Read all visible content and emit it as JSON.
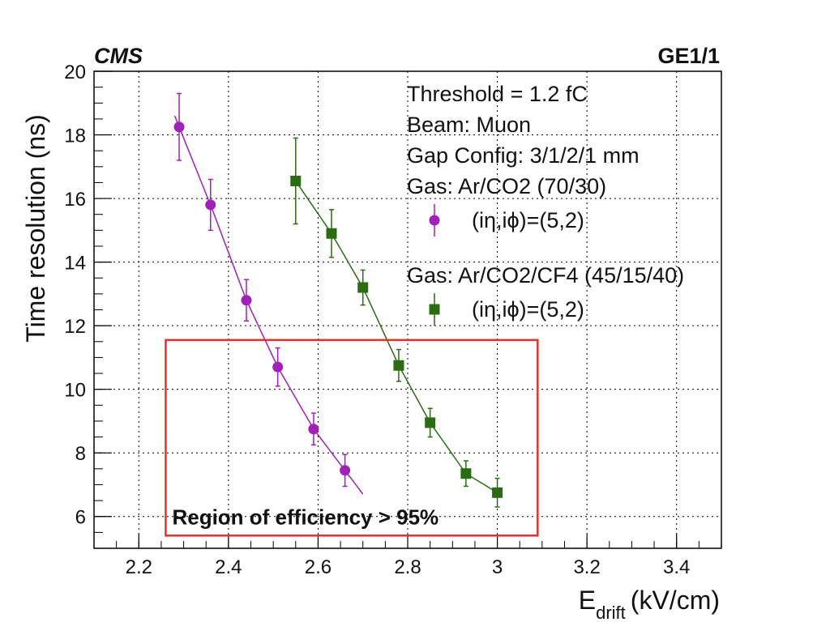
{
  "chart_data": {
    "type": "scatter",
    "experiment_label": "CMS",
    "detector_label": "GE1/1",
    "xlabel_main": "E",
    "xlabel_sub": "drift",
    "xlabel_unit": "(kV/cm)",
    "ylabel": "Time resolution (ns)",
    "xlim": [
      2.1,
      3.5
    ],
    "ylim": [
      5,
      20
    ],
    "x_ticks": [
      "2.2",
      "2.4",
      "2.6",
      "2.8",
      "3",
      "3.2",
      "3.4"
    ],
    "y_ticks": [
      "6",
      "8",
      "10",
      "12",
      "14",
      "16",
      "18",
      "20"
    ],
    "grid": true,
    "info_lines": [
      "Threshold = 1.2 fC",
      "Beam: Muon",
      "Gap Config: 3/1/2/1 mm",
      "Gas: Ar/CO2 (70/30)"
    ],
    "series": [
      {
        "gas_label": "",
        "legend": "(iη,iϕ)=(5,2)",
        "marker": "circle",
        "color": "#a020b8",
        "points": [
          {
            "x": 2.29,
            "y": 18.25,
            "err": 1.05
          },
          {
            "x": 2.36,
            "y": 15.8,
            "err": 0.8
          },
          {
            "x": 2.44,
            "y": 12.8,
            "err": 0.65
          },
          {
            "x": 2.51,
            "y": 10.7,
            "err": 0.6
          },
          {
            "x": 2.59,
            "y": 8.75,
            "err": 0.5
          },
          {
            "x": 2.66,
            "y": 7.45,
            "err": 0.5
          }
        ],
        "fit_range": [
          2.28,
          2.7
        ]
      },
      {
        "gas_label": "Gas: Ar/CO2/CF4 (45/15/40)",
        "legend": "(iη,iϕ)=(5,2)",
        "marker": "square",
        "color": "#2a6b14",
        "points": [
          {
            "x": 2.55,
            "y": 16.55,
            "err": 1.35
          },
          {
            "x": 2.63,
            "y": 14.9,
            "err": 0.75
          },
          {
            "x": 2.7,
            "y": 13.2,
            "err": 0.55
          },
          {
            "x": 2.78,
            "y": 10.75,
            "err": 0.5
          },
          {
            "x": 2.85,
            "y": 8.95,
            "err": 0.45
          },
          {
            "x": 2.93,
            "y": 7.35,
            "err": 0.4
          },
          {
            "x": 3.0,
            "y": 6.75,
            "err": 0.45
          }
        ],
        "fit_range": [
          2.55,
          3.0
        ]
      }
    ],
    "region_label": "Region of efficiency > 95%",
    "region_color": "#e8302a",
    "region": {
      "x": [
        2.26,
        3.09
      ],
      "y": [
        5.4,
        11.55
      ]
    }
  }
}
